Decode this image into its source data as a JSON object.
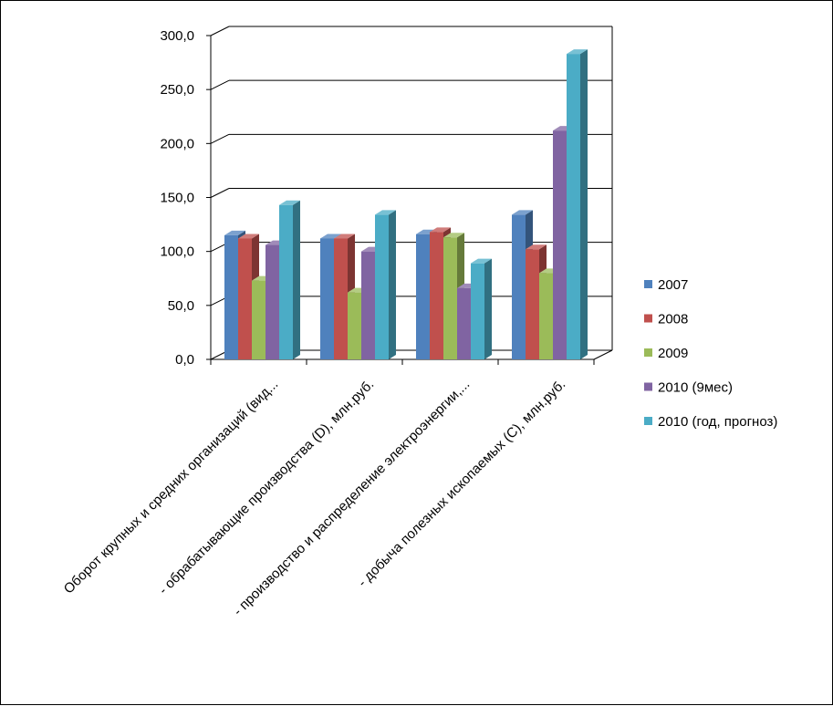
{
  "chart_data": {
    "type": "bar",
    "title": "",
    "xlabel": "",
    "ylabel": "",
    "ylim": [
      0,
      300
    ],
    "yticks": [
      "0,0",
      "50,0",
      "100,0",
      "150,0",
      "200,0",
      "250,0",
      "300,0"
    ],
    "grid": true,
    "legend_position": "right",
    "categories": [
      "Оборот крупных и средних организаций (вид...",
      "- обрабатывающие производства (D), млн.руб.",
      "- производство и распределение электроэнергии,...",
      "- добыча полезных ископаемых (С), млн.руб."
    ],
    "series": [
      {
        "name": "2007",
        "color": "#4F81BD",
        "values": [
          115,
          112,
          116,
          134
        ]
      },
      {
        "name": "2008",
        "color": "#C0504D",
        "values": [
          112,
          112,
          118,
          102
        ]
      },
      {
        "name": "2009",
        "color": "#9BBB59",
        "values": [
          73,
          62,
          113,
          80
        ]
      },
      {
        "name": "2010 (9мес)",
        "color": "#8064A2",
        "values": [
          106,
          100,
          66,
          212
        ]
      },
      {
        "name": "2010 (год, прогноз)",
        "color": "#4BACC6",
        "values": [
          143,
          134,
          89,
          283
        ]
      }
    ]
  }
}
